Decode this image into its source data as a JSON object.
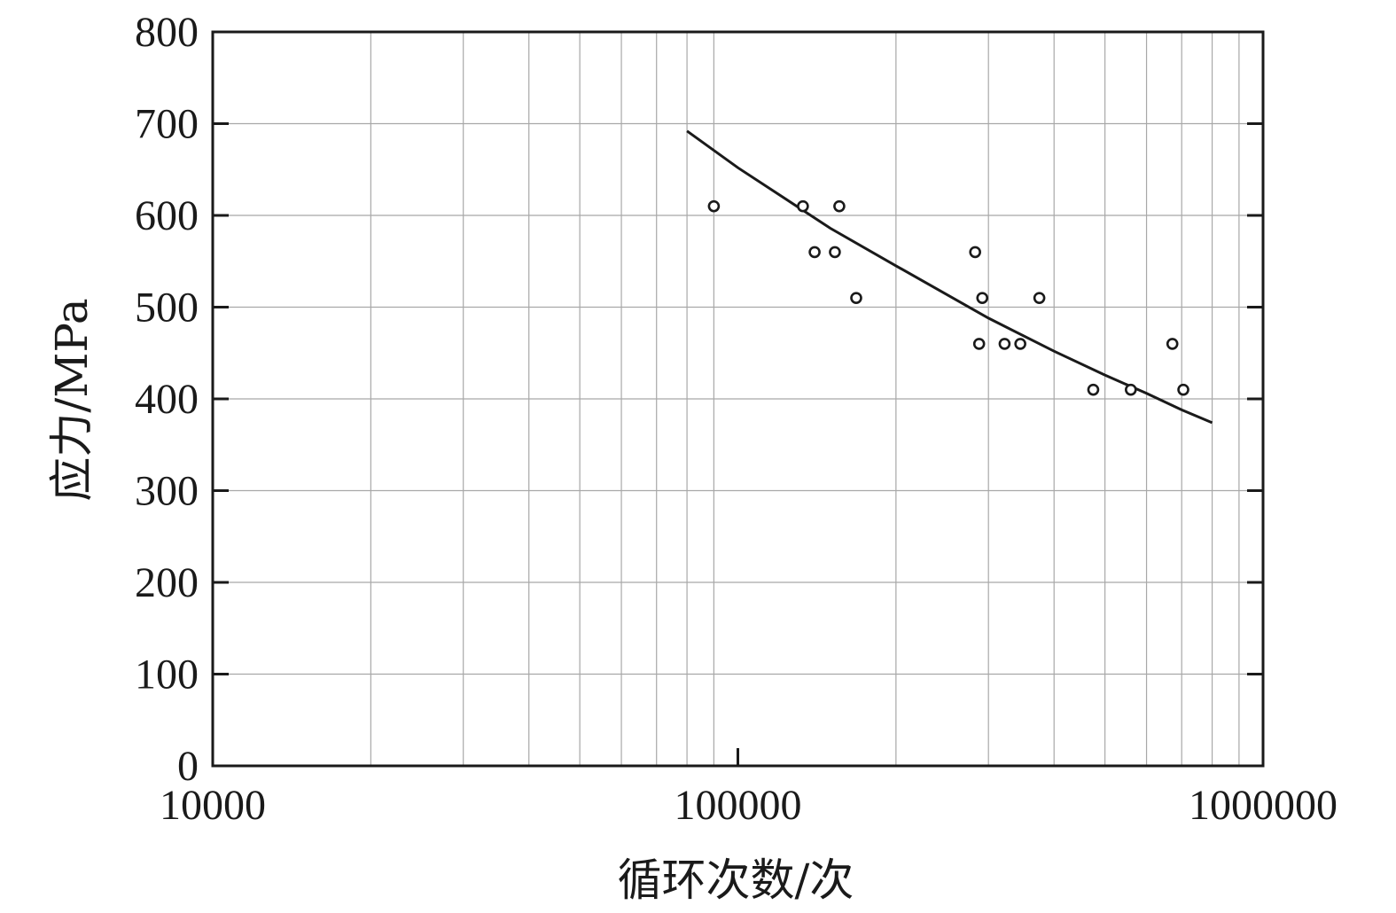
{
  "chart_data": {
    "type": "scatter",
    "xlabel": "循环次数/次",
    "ylabel": "应力/MPa",
    "x_scale": "log",
    "xlim": [
      10000,
      1000000
    ],
    "ylim": [
      0,
      800
    ],
    "x_tick_labels": [
      "10000",
      "100000",
      "1000000"
    ],
    "y_tick_labels": [
      "0",
      "100",
      "200",
      "300",
      "400",
      "500",
      "600",
      "700",
      "800"
    ],
    "grid": true,
    "series": [
      {
        "marker": "open-circle",
        "points": [
          {
            "x": 90000,
            "y": 610
          },
          {
            "x": 133000,
            "y": 610
          },
          {
            "x": 156000,
            "y": 610
          },
          {
            "x": 140000,
            "y": 560
          },
          {
            "x": 153000,
            "y": 560
          },
          {
            "x": 168000,
            "y": 510
          },
          {
            "x": 283000,
            "y": 560
          },
          {
            "x": 292000,
            "y": 510
          },
          {
            "x": 288000,
            "y": 460
          },
          {
            "x": 322000,
            "y": 460
          },
          {
            "x": 345000,
            "y": 460
          },
          {
            "x": 375000,
            "y": 510
          },
          {
            "x": 475000,
            "y": 410
          },
          {
            "x": 560000,
            "y": 410
          },
          {
            "x": 672000,
            "y": 460
          },
          {
            "x": 705000,
            "y": 410
          }
        ]
      },
      {
        "style": "fitted-curve",
        "points": [
          {
            "x": 80000,
            "y": 692
          },
          {
            "x": 100000,
            "y": 652
          },
          {
            "x": 150000,
            "y": 586
          },
          {
            "x": 200000,
            "y": 545
          },
          {
            "x": 300000,
            "y": 488
          },
          {
            "x": 400000,
            "y": 452
          },
          {
            "x": 500000,
            "y": 426
          },
          {
            "x": 600000,
            "y": 406
          },
          {
            "x": 700000,
            "y": 388
          },
          {
            "x": 800000,
            "y": 374
          }
        ]
      }
    ]
  },
  "colors": {
    "axis": "#1a1a1a",
    "grid": "#a8a8a8",
    "background": "#ffffff"
  }
}
